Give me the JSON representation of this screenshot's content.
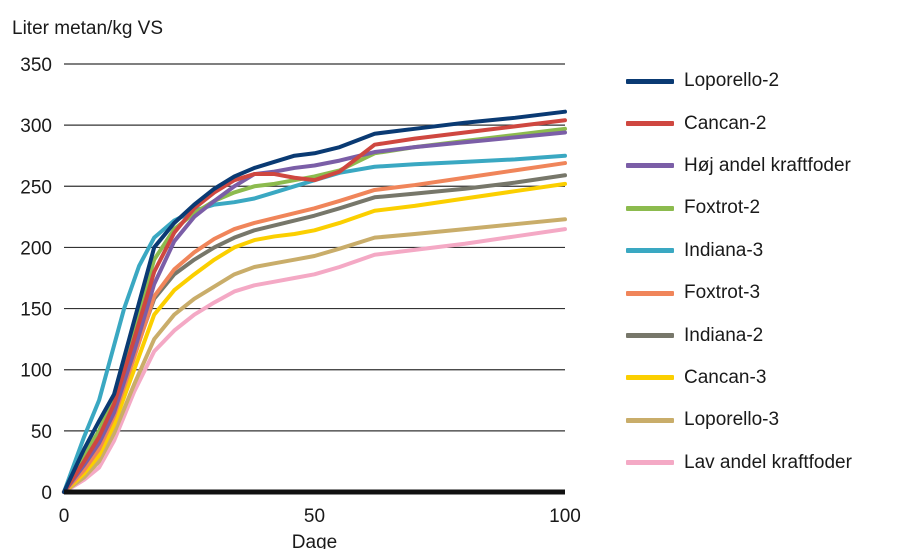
{
  "chart_data": {
    "type": "line",
    "ylabel": "Liter metan/kg VS",
    "xlabel": "Dage",
    "xlim": [
      0,
      100
    ],
    "ylim": [
      0,
      350
    ],
    "xticks": [
      0,
      50,
      100
    ],
    "yticks": [
      0,
      50,
      100,
      150,
      200,
      250,
      300,
      350
    ],
    "grid": "horizontal",
    "legend_position": "right",
    "series": [
      {
        "name": "Loporello-2",
        "color": "#0a3a73",
        "x": [
          0,
          4,
          7,
          10,
          14,
          18,
          22,
          26,
          30,
          34,
          38,
          42,
          46,
          50,
          55,
          62,
          70,
          80,
          90,
          100
        ],
        "y": [
          0,
          35,
          58,
          80,
          140,
          200,
          220,
          235,
          248,
          258,
          265,
          270,
          275,
          277,
          282,
          293,
          297,
          302,
          306,
          311
        ]
      },
      {
        "name": "Cancan-2",
        "color": "#cf4740",
        "x": [
          0,
          4,
          7,
          10,
          14,
          18,
          22,
          26,
          30,
          34,
          38,
          42,
          46,
          50,
          55,
          62,
          70,
          80,
          90,
          100
        ],
        "y": [
          0,
          25,
          45,
          72,
          125,
          180,
          212,
          232,
          245,
          255,
          260,
          260,
          257,
          255,
          262,
          284,
          289,
          294,
          299,
          304
        ]
      },
      {
        "name": "Høj andel kraftfoder",
        "color": "#7b5ea7",
        "x": [
          0,
          4,
          7,
          10,
          14,
          18,
          22,
          26,
          30,
          34,
          38,
          42,
          46,
          50,
          55,
          62,
          70,
          80,
          90,
          100
        ],
        "y": [
          0,
          22,
          40,
          65,
          115,
          170,
          205,
          225,
          238,
          250,
          260,
          262,
          265,
          267,
          271,
          278,
          282,
          286,
          290,
          294
        ]
      },
      {
        "name": "Foxtrot-2",
        "color": "#8cbb4e",
        "x": [
          0,
          4,
          7,
          10,
          14,
          18,
          22,
          26,
          30,
          34,
          38,
          42,
          46,
          50,
          55,
          62,
          70,
          80,
          90,
          100
        ],
        "y": [
          0,
          30,
          50,
          78,
          135,
          190,
          215,
          228,
          238,
          245,
          250,
          252,
          255,
          258,
          263,
          277,
          282,
          287,
          292,
          297
        ]
      },
      {
        "name": "Indiana-3",
        "color": "#3aa8c2",
        "x": [
          0,
          4,
          7,
          10,
          12,
          15,
          18,
          22,
          26,
          30,
          34,
          38,
          42,
          46,
          50,
          55,
          62,
          70,
          80,
          90,
          100
        ],
        "y": [
          0,
          45,
          75,
          120,
          150,
          185,
          208,
          222,
          230,
          235,
          237,
          240,
          245,
          250,
          255,
          261,
          266,
          268,
          270,
          272,
          275
        ]
      },
      {
        "name": "Foxtrot-3",
        "color": "#f0855a",
        "x": [
          0,
          4,
          7,
          10,
          14,
          18,
          22,
          26,
          30,
          34,
          38,
          42,
          46,
          50,
          55,
          62,
          70,
          80,
          90,
          100
        ],
        "y": [
          0,
          18,
          35,
          62,
          110,
          160,
          182,
          196,
          207,
          215,
          220,
          224,
          228,
          232,
          238,
          247,
          251,
          257,
          263,
          269
        ]
      },
      {
        "name": "Indiana-2",
        "color": "#77776a",
        "x": [
          0,
          4,
          7,
          10,
          14,
          18,
          22,
          26,
          30,
          34,
          38,
          42,
          46,
          50,
          55,
          62,
          70,
          80,
          90,
          100
        ],
        "y": [
          0,
          20,
          38,
          65,
          112,
          158,
          178,
          190,
          200,
          208,
          214,
          218,
          222,
          226,
          232,
          241,
          244,
          248,
          253,
          259
        ]
      },
      {
        "name": "Cancan-3",
        "color": "#fbcf00",
        "x": [
          0,
          4,
          7,
          10,
          14,
          18,
          22,
          26,
          30,
          34,
          38,
          42,
          46,
          50,
          55,
          62,
          70,
          80,
          90,
          100
        ],
        "y": [
          0,
          15,
          30,
          55,
          100,
          145,
          165,
          178,
          190,
          200,
          206,
          209,
          211,
          214,
          220,
          230,
          234,
          240,
          246,
          252
        ]
      },
      {
        "name": "Loporello-3",
        "color": "#c9ad6a",
        "x": [
          0,
          4,
          7,
          10,
          14,
          18,
          22,
          26,
          30,
          34,
          38,
          42,
          46,
          50,
          55,
          62,
          70,
          80,
          90,
          100
        ],
        "y": [
          0,
          12,
          25,
          48,
          88,
          125,
          145,
          158,
          168,
          178,
          184,
          187,
          190,
          193,
          199,
          208,
          211,
          215,
          219,
          223
        ]
      },
      {
        "name": "Lav andel kraftfoder",
        "color": "#f4a9c5",
        "x": [
          0,
          4,
          7,
          10,
          14,
          18,
          22,
          26,
          30,
          34,
          38,
          42,
          46,
          50,
          55,
          62,
          70,
          80,
          90,
          100
        ],
        "y": [
          0,
          10,
          20,
          42,
          82,
          115,
          132,
          145,
          155,
          164,
          169,
          172,
          175,
          178,
          184,
          194,
          198,
          203,
          209,
          215
        ]
      }
    ]
  }
}
